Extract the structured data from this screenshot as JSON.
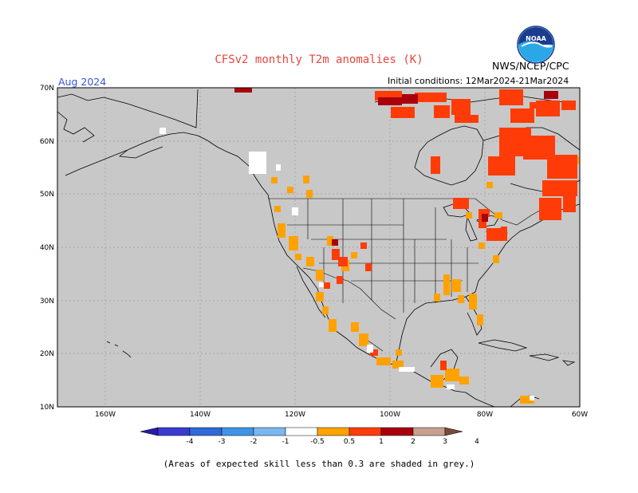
{
  "header": {
    "title": "CFSv2 monthly T2m anomalies (K)",
    "org": "NWS/NCEP/CPC",
    "logo_text": "NOAA",
    "month": "Aug 2024",
    "initial_conditions": "Initial conditions: 12Mar2024-21Mar2024"
  },
  "map": {
    "lat_labels": [
      "70N",
      "60N",
      "50N",
      "40N",
      "30N",
      "20N",
      "10N"
    ],
    "lon_labels": [
      "160W",
      "140W",
      "120W",
      "100W",
      "80W",
      "60W"
    ],
    "background_color": "#c8c8c8"
  },
  "colorbar": {
    "labels": [
      "-4",
      "-3",
      "-2",
      "-1",
      "-0.5",
      "0.5",
      "1",
      "2",
      "3",
      "4"
    ],
    "colors": [
      "#2a1aa8",
      "#3a3ad0",
      "#2f6ad8",
      "#3f94e6",
      "#7ab8f2",
      "#ffffff",
      "#ffa200",
      "#ff3c08",
      "#a8000c",
      "#c8a090",
      "#7a4a3a"
    ]
  },
  "footnote": "(Areas of expected skill less than 0.3 are shaded in grey.)",
  "legend_colors": {
    "light_orange": "#ffa200",
    "orange_red": "#ff3c08",
    "dark_red": "#a8000c"
  }
}
